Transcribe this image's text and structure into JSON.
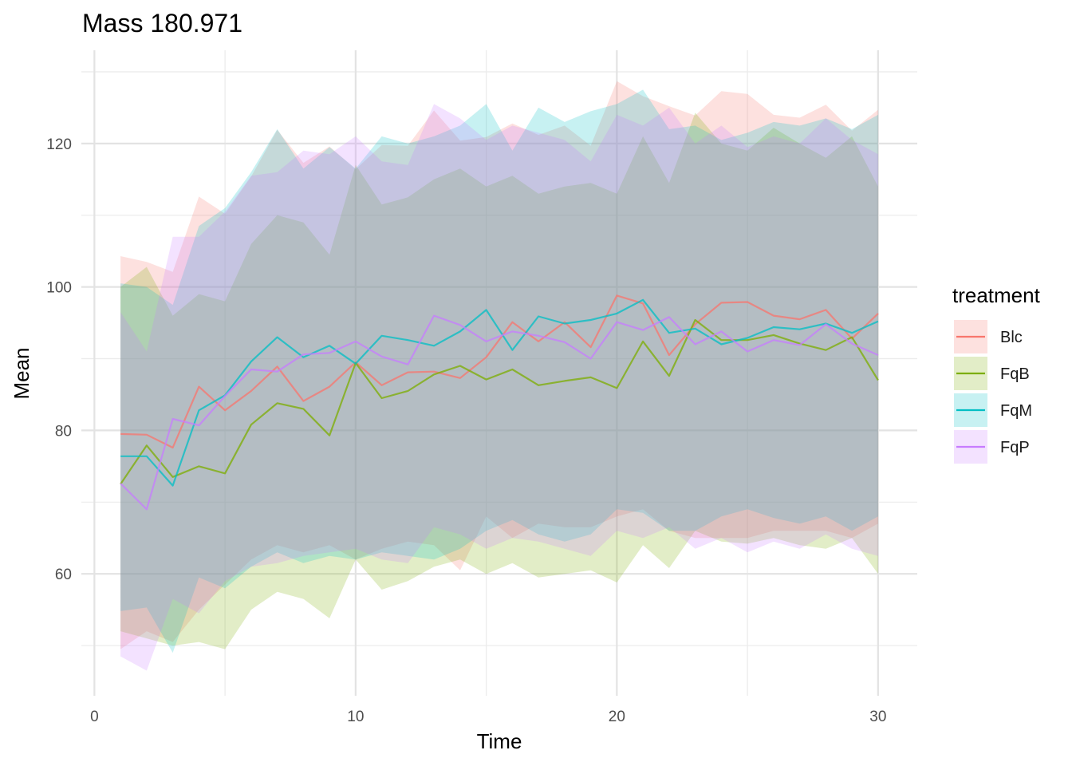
{
  "chart_data": {
    "type": "line",
    "title": "Mass 180.971",
    "xlabel": "Time",
    "ylabel": "Mean",
    "xlim": [
      -0.5,
      31.5
    ],
    "ylim": [
      43,
      133
    ],
    "x_ticks": [
      0,
      10,
      20,
      30
    ],
    "x_tick_labels": [
      "0",
      "10",
      "20",
      "30"
    ],
    "y_ticks": [
      60,
      80,
      100,
      120
    ],
    "y_tick_labels": [
      "60",
      "80",
      "100",
      "120"
    ],
    "x_minor_gridlines": [
      5,
      15,
      25
    ],
    "y_minor_gridlines": [
      50,
      70,
      90,
      110,
      130
    ],
    "grid": true,
    "ribbons_shown": true,
    "legend": {
      "title": "treatment",
      "position": "right",
      "entries": [
        "Blc",
        "FqB",
        "FqM",
        "FqP"
      ]
    },
    "x": [
      1,
      2,
      3,
      4,
      5,
      6,
      7,
      8,
      9,
      10,
      11,
      12,
      13,
      14,
      15,
      16,
      17,
      18,
      19,
      20,
      21,
      22,
      23,
      24,
      25,
      26,
      27,
      28,
      29,
      30
    ],
    "series": [
      {
        "name": "Blc",
        "color": "#F8766D",
        "mean": [
          79.5,
          79.4,
          77.6,
          86.1,
          82.8,
          85.5,
          88.9,
          84.1,
          86.1,
          89.5,
          86.3,
          88.1,
          88.2,
          87.3,
          90.2,
          95.1,
          92.4,
          95.1,
          91.6,
          98.8,
          97.7,
          90.5,
          94.8,
          97.8,
          97.9,
          96.0,
          95.5,
          96.8,
          92.8,
          96.3
        ],
        "upper": [
          104.3,
          103.5,
          102.1,
          112.6,
          110.2,
          115.4,
          121.9,
          117.3,
          119.6,
          116.4,
          119.8,
          119.7,
          124.6,
          120.4,
          120.9,
          122.8,
          121.2,
          122.5,
          119.7,
          128.7,
          126.6,
          125.2,
          123.9,
          127.3,
          126.9,
          124.0,
          123.6,
          125.4,
          121.8,
          124.7
        ],
        "lower": [
          49.5,
          52.0,
          50.5,
          55.0,
          58.5,
          62.0,
          64.0,
          63.0,
          64.0,
          62.0,
          63.5,
          64.5,
          64.0,
          60.5,
          68.0,
          65.0,
          67.0,
          66.5,
          66.5,
          68.0,
          69.0,
          66.0,
          65.0,
          65.0,
          65.0,
          66.0,
          66.0,
          66.0,
          65.0,
          67.0
        ]
      },
      {
        "name": "FqB",
        "color": "#7CAE00",
        "mean": [
          72.5,
          77.9,
          73.5,
          75.0,
          74.0,
          80.8,
          83.8,
          83.0,
          79.3,
          89.4,
          84.5,
          85.5,
          87.8,
          89.0,
          87.1,
          88.5,
          86.3,
          86.9,
          87.4,
          85.9,
          92.4,
          87.6,
          95.4,
          92.6,
          92.6,
          93.3,
          92.1,
          91.2,
          93.0,
          87.0
        ],
        "upper": [
          100.0,
          102.8,
          96.0,
          99.0,
          98.0,
          106.0,
          110.0,
          109.0,
          104.5,
          117.0,
          111.5,
          112.5,
          115.0,
          116.5,
          114.0,
          115.5,
          113.0,
          114.0,
          114.5,
          113.0,
          121.0,
          114.5,
          124.3,
          120.0,
          119.0,
          122.2,
          120.0,
          118.0,
          121.0,
          114.0
        ],
        "lower": [
          52.0,
          51.0,
          50.0,
          50.5,
          49.5,
          55.0,
          57.5,
          56.5,
          53.8,
          62.0,
          57.8,
          59.0,
          61.0,
          62.0,
          60.0,
          61.5,
          59.5,
          60.0,
          60.5,
          58.8,
          64.0,
          60.8,
          66.0,
          64.5,
          64.2,
          65.0,
          64.0,
          63.5,
          65.0,
          60.0
        ]
      },
      {
        "name": "FqM",
        "color": "#00BFC4",
        "mean": [
          76.4,
          76.4,
          72.3,
          82.8,
          84.9,
          89.6,
          93.0,
          90.2,
          91.8,
          89.3,
          93.2,
          92.6,
          91.8,
          93.8,
          96.8,
          91.2,
          95.9,
          94.9,
          95.4,
          96.3,
          98.2,
          93.6,
          94.2,
          92.0,
          92.9,
          94.4,
          94.1,
          94.9,
          93.6,
          95.2
        ],
        "upper": [
          100.5,
          100.0,
          97.5,
          108.5,
          111.0,
          116.0,
          122.0,
          116.5,
          119.5,
          116.5,
          121.0,
          120.0,
          121.0,
          122.5,
          125.5,
          119.0,
          125.0,
          123.0,
          124.5,
          125.5,
          127.5,
          122.0,
          122.5,
          120.5,
          121.5,
          123.0,
          122.5,
          123.5,
          122.0,
          124.0
        ],
        "lower": [
          54.8,
          55.3,
          49.0,
          59.5,
          58.0,
          61.0,
          63.0,
          61.5,
          62.5,
          62.0,
          63.0,
          62.5,
          62.0,
          63.5,
          66.0,
          67.5,
          65.5,
          64.5,
          65.5,
          69.0,
          68.5,
          66.0,
          66.0,
          68.0,
          69.0,
          67.8,
          67.0,
          68.0,
          66.0,
          68.0
        ]
      },
      {
        "name": "FqP",
        "color": "#C77CFF",
        "mean": [
          72.6,
          69.0,
          81.6,
          80.7,
          84.8,
          88.5,
          88.2,
          90.6,
          90.8,
          92.4,
          90.3,
          89.2,
          96.0,
          94.7,
          92.4,
          93.8,
          93.2,
          92.3,
          90.0,
          95.1,
          94.0,
          95.8,
          92.0,
          93.8,
          91.0,
          92.6,
          91.9,
          94.8,
          92.1,
          90.5
        ],
        "upper": [
          96.5,
          91.0,
          107.0,
          107.0,
          110.5,
          115.5,
          116.0,
          119.0,
          118.5,
          121.0,
          117.5,
          117.0,
          125.5,
          123.5,
          120.5,
          122.5,
          121.5,
          120.5,
          117.5,
          124.0,
          122.5,
          125.0,
          120.0,
          122.5,
          119.5,
          121.0,
          120.0,
          123.5,
          120.5,
          118.5
        ],
        "lower": [
          48.5,
          46.5,
          56.5,
          54.5,
          59.0,
          61.0,
          61.5,
          62.5,
          63.0,
          63.5,
          62.0,
          61.5,
          66.5,
          65.5,
          63.5,
          65.0,
          64.5,
          63.5,
          62.5,
          66.0,
          65.0,
          66.5,
          63.5,
          65.0,
          63.0,
          64.5,
          63.5,
          65.5,
          63.5,
          62.5
        ]
      }
    ]
  }
}
